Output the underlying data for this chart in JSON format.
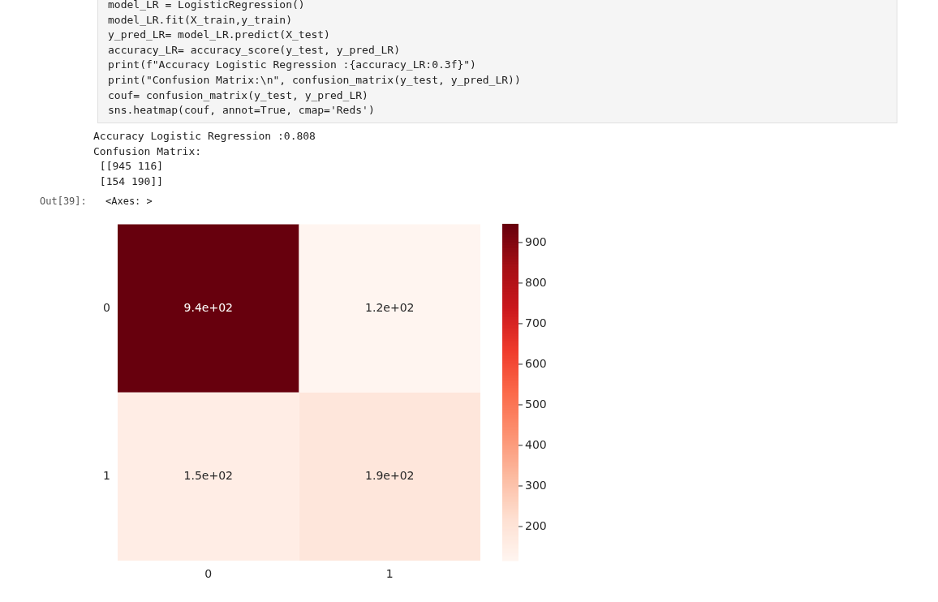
{
  "chart_data": {
    "type": "heatmap",
    "categories": [
      "0",
      "1"
    ],
    "y_categories": [
      "0",
      "1"
    ],
    "cells": [
      [
        945,
        116
      ],
      [
        154,
        190
      ]
    ],
    "cell_labels": [
      [
        "9.4e+02",
        "1.2e+02"
      ],
      [
        "1.5e+02",
        "1.9e+02"
      ]
    ],
    "clim": [
      116,
      945
    ],
    "cticks": [
      200,
      300,
      400,
      500,
      600,
      700,
      800,
      900
    ],
    "annotations": [
      "model_LR = LogisticRegression()",
      "model_LR.fit(X_train,y_train)",
      "y_pred_LR= model_LR.predict(X_test)",
      "accuracy_LR= accuracy_score(y_test, y_pred_LR)",
      "print(f\"Accuracy Logistic Regression :{accuracy_LR:0.3f}\")",
      "print(\"Confusion Matrix:\\n\", confusion_matrix(y_test, y_pred_LR))",
      "couf= confusion_matrix(y_test, y_pred_LR)",
      "sns.heatmap(couf, annot=True, cmap='Reds')",
      "Accuracy Logistic Regression :0.808",
      "Confusion Matrix:",
      " [[945 116]",
      " [154 190]]",
      "Out[39]:",
      "<Axes: >"
    ]
  }
}
